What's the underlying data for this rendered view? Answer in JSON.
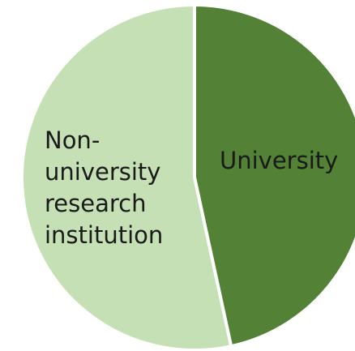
{
  "chart_data": {
    "type": "pie",
    "title": "",
    "slices": [
      {
        "label": "University",
        "value": 46.6,
        "color": "#538135"
      },
      {
        "label": "Non-university research institution",
        "value": 53.4,
        "color": "#C5E0B4"
      }
    ],
    "label_lines": [
      [
        "University"
      ],
      [
        "Non-",
        "university",
        "research",
        "institution"
      ]
    ],
    "border_color": "#ffffff",
    "legend": "none"
  }
}
